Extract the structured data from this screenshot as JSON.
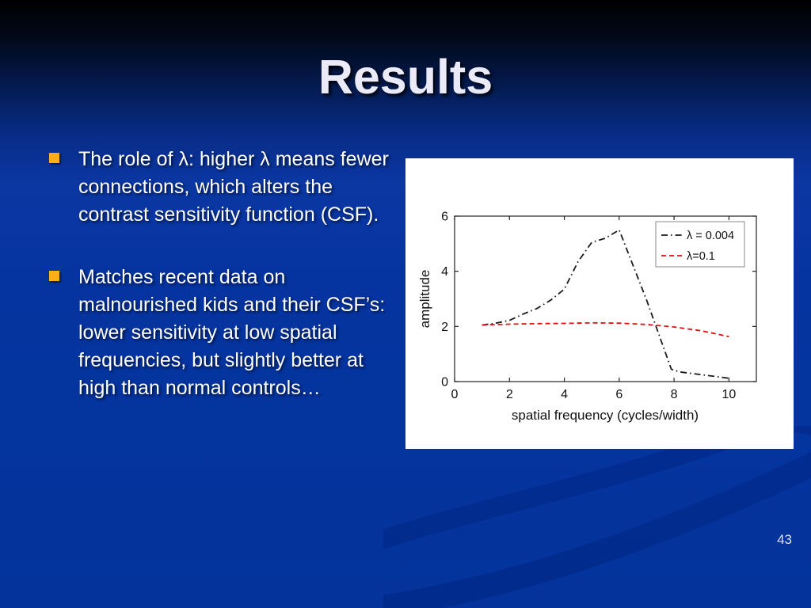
{
  "slide": {
    "title": "Results",
    "page_number": "43",
    "bullets": [
      {
        "text": "The role of λ: higher λ means fewer connections, which alters the contrast sensitivity function (CSF)."
      },
      {
        "text": "Matches recent data on malnourished kids and their CSF’s: lower sensitivity at low spatial frequencies, but slightly better at high than normal controls…"
      }
    ],
    "colors": {
      "background_top": "#000002",
      "background_blue": "#03339B",
      "bullet_marker": "#FBAE17",
      "title_text": "#EAEAF8",
      "body_text": "#FFFFFF",
      "page_number_text": "#DDE2F0",
      "swoosh": "#01247E",
      "chart_background": "#FFFFFF"
    }
  },
  "chart_data": {
    "type": "line",
    "title": "",
    "xlabel": "spatial frequency (cycles/width)",
    "ylabel": "amplitude",
    "xlim": [
      0,
      11
    ],
    "ylim": [
      0,
      6
    ],
    "xticks": [
      0,
      2,
      4,
      6,
      8,
      10
    ],
    "yticks": [
      0,
      2,
      4,
      6
    ],
    "grid": false,
    "legend": {
      "position": "upper-right",
      "border": true
    },
    "series": [
      {
        "name": "λ = 0.004",
        "color": "#1A1A1A",
        "line_style": "dash-dot",
        "x": [
          1.0,
          1.5,
          2.0,
          2.5,
          3.0,
          3.5,
          4.0,
          4.5,
          5.0,
          5.5,
          6.0,
          7.0,
          7.9,
          8.2,
          9.0,
          10.0
        ],
        "y": [
          2.05,
          2.12,
          2.22,
          2.45,
          2.65,
          2.95,
          3.35,
          4.35,
          5.05,
          5.2,
          5.5,
          2.95,
          0.45,
          0.35,
          0.25,
          0.12
        ]
      },
      {
        "name": "λ=0.1",
        "color": "#DD1111",
        "line_style": "dashed",
        "x": [
          1.0,
          2.0,
          3.0,
          4.0,
          5.0,
          6.0,
          7.0,
          8.0,
          9.0,
          10.0
        ],
        "y": [
          2.05,
          2.08,
          2.1,
          2.11,
          2.13,
          2.12,
          2.07,
          1.98,
          1.84,
          1.63
        ]
      }
    ]
  }
}
